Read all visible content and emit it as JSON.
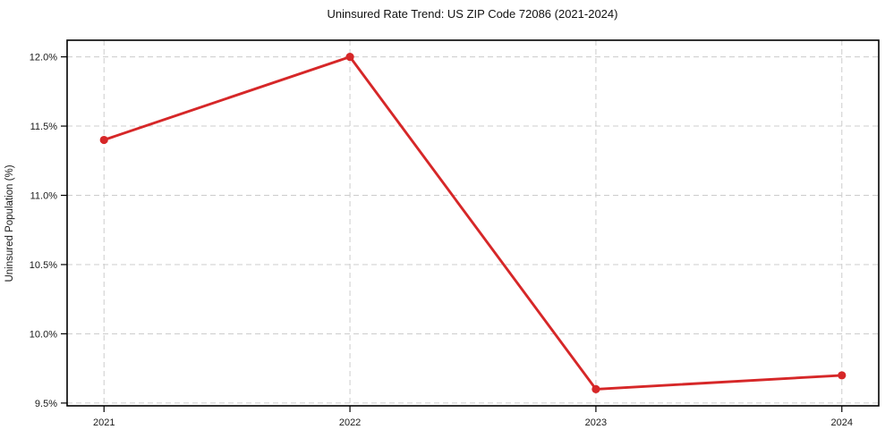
{
  "chart_data": {
    "type": "line",
    "title": "Uninsured Rate Trend: US ZIP Code 72086 (2021-2024)",
    "ylabel": "Uninsured Population (%)",
    "xlabel": "",
    "x": [
      2021,
      2022,
      2023,
      2024
    ],
    "series": [
      {
        "values": [
          11.4,
          12.0,
          9.6,
          9.7
        ],
        "color": "#d62728",
        "marker": "circle",
        "line_width": 2.9,
        "marker_radius": 4.6
      }
    ],
    "xticks": [
      {
        "value": 2021,
        "label": "2021"
      },
      {
        "value": 2022,
        "label": "2022"
      },
      {
        "value": 2023,
        "label": "2023"
      },
      {
        "value": 2024,
        "label": "2024"
      }
    ],
    "yticks": [
      {
        "value": 9.5,
        "label": "9.5%"
      },
      {
        "value": 10.0,
        "label": "10.0%"
      },
      {
        "value": 10.5,
        "label": "10.5%"
      },
      {
        "value": 11.0,
        "label": "11.0%"
      },
      {
        "value": 11.5,
        "label": "11.5%"
      },
      {
        "value": 12.0,
        "label": "12.0%"
      }
    ],
    "xlim": [
      2020.85,
      2024.15
    ],
    "ylim": [
      9.48,
      12.12
    ],
    "grid": true,
    "legend_position": "none",
    "colors": {
      "line": "#d62728",
      "grid": "#cccccc",
      "frame": "#000000",
      "text": "#1a1a1a",
      "background": "#ffffff"
    }
  }
}
